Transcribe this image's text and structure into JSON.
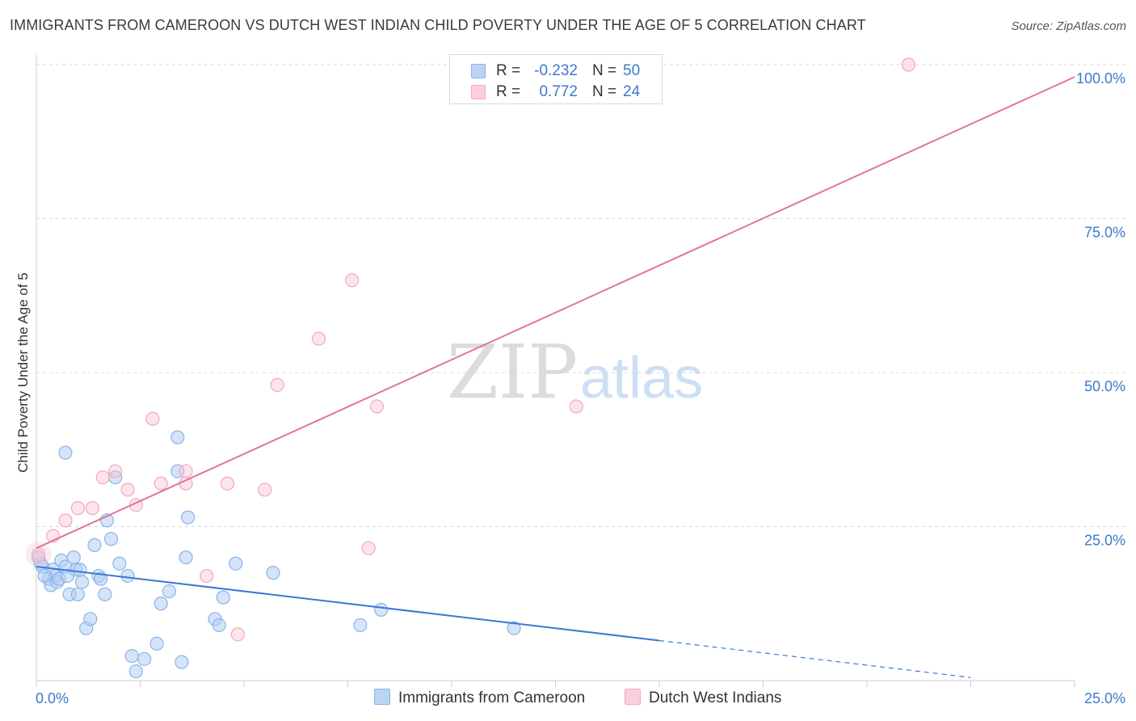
{
  "header": {
    "title": "IMMIGRANTS FROM CAMEROON VS DUTCH WEST INDIAN CHILD POVERTY UNDER THE AGE OF 5 CORRELATION CHART",
    "source": "Source: ZipAtlas.com"
  },
  "watermark": {
    "zip": "ZIP",
    "atlas": "atlas"
  },
  "legend": {
    "rows": [
      {
        "r_label": "R =",
        "r_value": "-0.232",
        "n_label": "N =",
        "n_value": "50"
      },
      {
        "r_label": "R =",
        "r_value": "0.772",
        "n_label": "N =",
        "n_value": "24"
      }
    ]
  },
  "bottom_legend": {
    "series_a": "Immigrants from Cameroon",
    "series_b": "Dutch West Indians"
  },
  "chart_data": {
    "type": "scatter",
    "ylabel": "Child Poverty Under the Age of 5",
    "xlabel": "",
    "xlim": [
      0,
      25
    ],
    "ylim": [
      0,
      100
    ],
    "x_tick_labels": [
      {
        "value": 0,
        "label": "0.0%"
      },
      {
        "value": 25,
        "label": "25.0%"
      }
    ],
    "y_tick_labels": [
      {
        "value": 25,
        "label": "25.0%"
      },
      {
        "value": 50,
        "label": "50.0%"
      },
      {
        "value": 75,
        "label": "75.0%"
      },
      {
        "value": 100,
        "label": "100.0%"
      }
    ],
    "grid": true,
    "legend_position": "top-center",
    "series": [
      {
        "name": "Immigrants from Cameroon",
        "color": "#8ab4e8",
        "line_color": "#3b78d4",
        "points": [
          [
            0.05,
            20.0
          ],
          [
            0.1,
            19.0
          ],
          [
            0.15,
            18.5
          ],
          [
            0.3,
            16.5
          ],
          [
            0.35,
            15.5
          ],
          [
            0.4,
            18.0
          ],
          [
            0.45,
            17.0
          ],
          [
            0.5,
            16.0
          ],
          [
            0.55,
            16.5
          ],
          [
            0.6,
            19.5
          ],
          [
            0.7,
            18.5
          ],
          [
            0.75,
            17.0
          ],
          [
            0.8,
            14.0
          ],
          [
            0.9,
            20.0
          ],
          [
            0.95,
            18.0
          ],
          [
            1.0,
            14.0
          ],
          [
            1.1,
            16.0
          ],
          [
            1.2,
            8.5
          ],
          [
            1.3,
            10.0
          ],
          [
            1.4,
            22.0
          ],
          [
            1.5,
            17.0
          ],
          [
            1.55,
            16.5
          ],
          [
            1.65,
            14.0
          ],
          [
            1.7,
            26.0
          ],
          [
            1.8,
            23.0
          ],
          [
            1.9,
            33.0
          ],
          [
            2.0,
            19.0
          ],
          [
            2.2,
            17.0
          ],
          [
            2.3,
            4.0
          ],
          [
            2.4,
            1.5
          ],
          [
            2.6,
            3.5
          ],
          [
            2.9,
            6.0
          ],
          [
            3.0,
            12.5
          ],
          [
            3.2,
            14.5
          ],
          [
            3.4,
            34.0
          ],
          [
            3.5,
            3.0
          ],
          [
            3.6,
            20.0
          ],
          [
            3.65,
            26.5
          ],
          [
            4.3,
            10.0
          ],
          [
            4.4,
            9.0
          ],
          [
            4.5,
            13.5
          ],
          [
            4.8,
            19.0
          ],
          [
            5.7,
            17.5
          ],
          [
            7.8,
            9.0
          ],
          [
            8.3,
            11.5
          ],
          [
            11.5,
            8.5
          ],
          [
            0.7,
            37.0
          ],
          [
            3.4,
            39.5
          ],
          [
            0.2,
            17.0
          ],
          [
            1.05,
            18.0
          ]
        ],
        "trend": {
          "x0": 0,
          "y0": 18.5,
          "x1": 15,
          "y1": 6.5,
          "dashed_to_x": 22.5,
          "dashed_to_y": 0.5
        }
      },
      {
        "name": "Dutch West Indians",
        "color": "#f4a7bd",
        "line_color": "#e3749a",
        "points": [
          [
            0.05,
            20.5
          ],
          [
            0.4,
            23.5
          ],
          [
            0.7,
            26.0
          ],
          [
            1.0,
            28.0
          ],
          [
            1.35,
            28.0
          ],
          [
            1.6,
            33.0
          ],
          [
            1.9,
            34.0
          ],
          [
            2.2,
            31.0
          ],
          [
            2.4,
            28.5
          ],
          [
            2.8,
            42.5
          ],
          [
            3.0,
            32.0
          ],
          [
            3.6,
            34.0
          ],
          [
            3.6,
            32.0
          ],
          [
            4.1,
            17.0
          ],
          [
            4.6,
            32.0
          ],
          [
            4.85,
            7.5
          ],
          [
            5.5,
            31.0
          ],
          [
            5.8,
            48.0
          ],
          [
            6.8,
            55.5
          ],
          [
            7.6,
            65.0
          ],
          [
            8.0,
            21.5
          ],
          [
            8.2,
            44.5
          ],
          [
            13.0,
            44.5
          ],
          [
            21.0,
            100.0
          ]
        ],
        "trend": {
          "x0": 0,
          "y0": 21.5,
          "x1": 25,
          "y1": 98.0
        }
      }
    ]
  }
}
